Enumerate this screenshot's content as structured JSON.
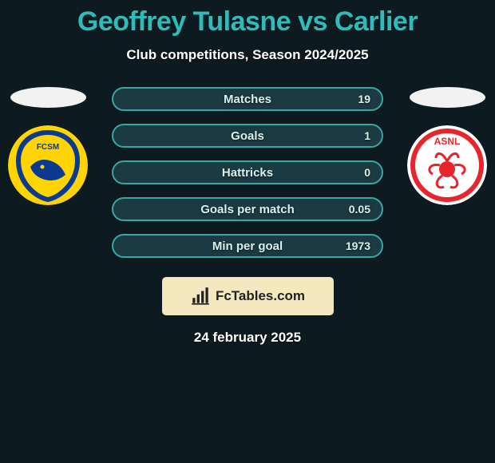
{
  "background_color": "#0d1a1f",
  "title": {
    "text": "Geoffrey Tulasne vs Carlier",
    "color": "#2fbbb7",
    "fontsize": 34
  },
  "subtitle": {
    "text": "Club competitions, Season 2024/2025",
    "color": "#ffffff",
    "fontsize": 17
  },
  "left_club": {
    "name": "FCSM Sochaux",
    "crest": {
      "bg": "#ffd400",
      "accent": "#0a3b8f"
    }
  },
  "right_club": {
    "name": "ASNL Nancy",
    "crest": {
      "bg": "#ffffff",
      "accent": "#e6252c"
    }
  },
  "stat_row_style": {
    "fill_color": "#1b3a42",
    "border_color": "#3aa6a2",
    "label_color": "#d9f0ef",
    "value_color": "#d9f0ef"
  },
  "stats": [
    {
      "label": "Matches",
      "right_value": "19"
    },
    {
      "label": "Goals",
      "right_value": "1"
    },
    {
      "label": "Hattricks",
      "right_value": "0"
    },
    {
      "label": "Goals per match",
      "right_value": "0.05"
    },
    {
      "label": "Min per goal",
      "right_value": "1973"
    }
  ],
  "watermark": {
    "text": "FcTables.com",
    "bg": "#f3e8c0",
    "text_color": "#222222"
  },
  "footer_date": {
    "text": "24 february 2025",
    "color": "#ffffff"
  }
}
